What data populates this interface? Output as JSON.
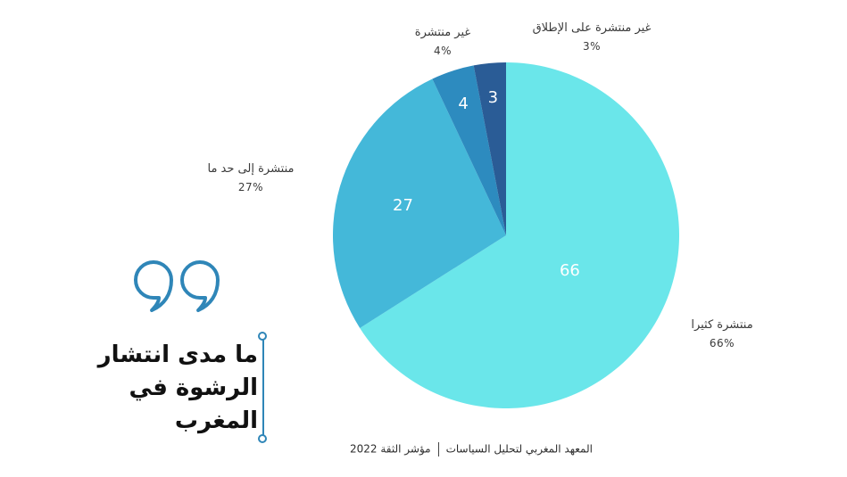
{
  "colors": {
    "kathiran": "#6ae6ea",
    "ila_had_ma": "#44b8d9",
    "ghayr": "#2d8bbf",
    "ghayr_itlaqan": "#2a5c96",
    "accent": "#2f86b8"
  },
  "title_lines": [
    "ما مدى انتشار",
    "الرشوة في",
    "المغرب"
  ],
  "footer": {
    "institute": "المعهد المغربي لتحليل السياسات",
    "index": "مؤشر الثقة 2022"
  },
  "chart_data": {
    "type": "pie",
    "start_angle_deg": 0,
    "direction": "clockwise",
    "slices": [
      {
        "label": "منتشرة كثيرا",
        "value": 66,
        "pct": "66%",
        "color": "#6ae6ea"
      },
      {
        "label": "منتشرة إلى حد ما",
        "value": 27,
        "pct": "27%",
        "color": "#44b8d9"
      },
      {
        "label": "غير منتشرة",
        "value": 4,
        "pct": "4%",
        "color": "#2d8bbf"
      },
      {
        "label": "غير منتشرة على الإطلاق",
        "value": 3,
        "pct": "3%",
        "color": "#2a5c96"
      }
    ]
  }
}
